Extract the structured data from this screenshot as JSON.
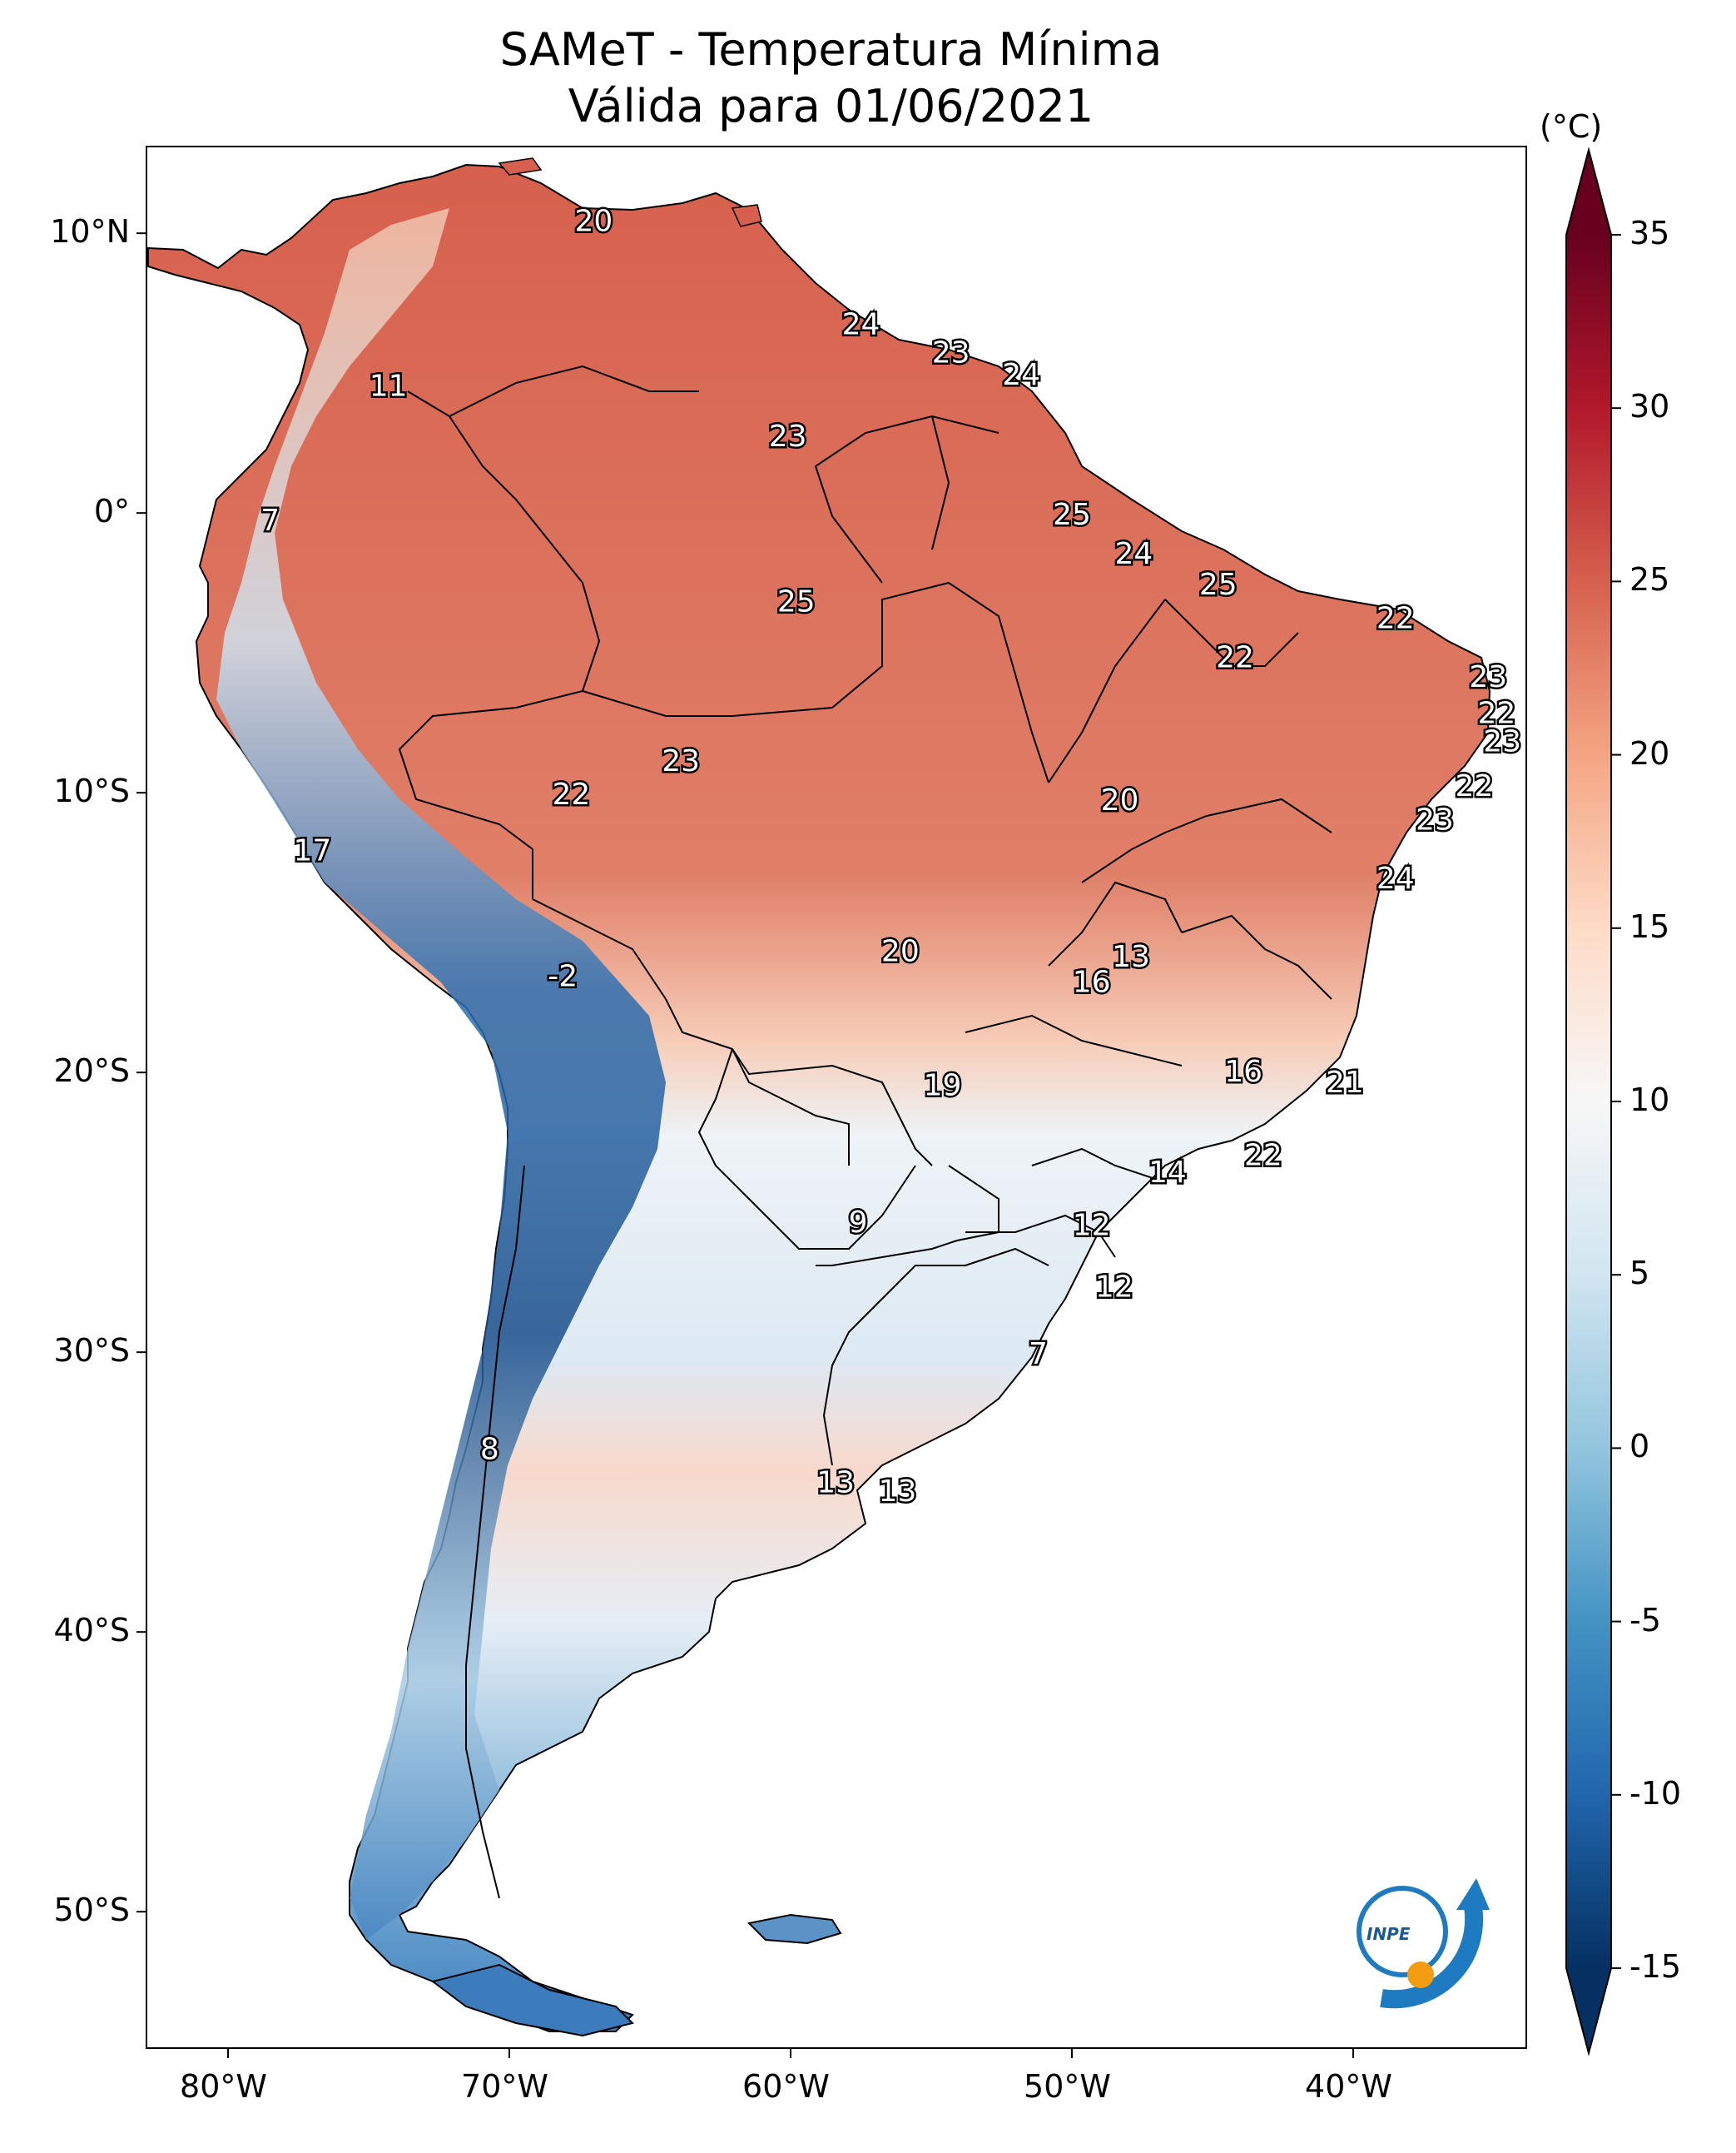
{
  "title": "SAMeT - Temperatura Mínima",
  "subtitle": "Válida para 01/06/2021",
  "colorbar": {
    "unit": "(°C)",
    "ticks": [
      "35",
      "30",
      "25",
      "20",
      "15",
      "10",
      "5",
      "0",
      "-5",
      "-10",
      "-15"
    ],
    "min": -15,
    "max": 35,
    "colors_cold_to_hot": [
      "#053061",
      "#2166ac",
      "#4393c3",
      "#92c5de",
      "#d1e5f0",
      "#f7f7f7",
      "#fddbc7",
      "#f4a582",
      "#d6604d",
      "#b2182b",
      "#67001f"
    ]
  },
  "axes": {
    "lat_ticks": [
      "10°N",
      "0°",
      "10°S",
      "20°S",
      "30°S",
      "40°S",
      "50°S"
    ],
    "lon_ticks": [
      "80°W",
      "70°W",
      "60°W",
      "50°W",
      "40°W"
    ]
  },
  "city_values": [
    {
      "label": "20",
      "lon": -67.0,
      "lat": 10.5
    },
    {
      "label": "11",
      "lon": -74.3,
      "lat": 4.6
    },
    {
      "label": "24",
      "lon": -57.5,
      "lat": 6.8
    },
    {
      "label": "23",
      "lon": -54.3,
      "lat": 5.8
    },
    {
      "label": "24",
      "lon": -51.8,
      "lat": 5.0
    },
    {
      "label": "23",
      "lon": -60.1,
      "lat": 2.8
    },
    {
      "label": "7",
      "lon": -78.5,
      "lat": -0.2
    },
    {
      "label": "25",
      "lon": -50.0,
      "lat": 0.0
    },
    {
      "label": "24",
      "lon": -47.8,
      "lat": -1.4
    },
    {
      "label": "25",
      "lon": -44.8,
      "lat": -2.5
    },
    {
      "label": "22",
      "lon": -38.5,
      "lat": -3.7
    },
    {
      "label": "25",
      "lon": -59.8,
      "lat": -3.1
    },
    {
      "label": "22",
      "lon": -44.2,
      "lat": -5.1
    },
    {
      "label": "23",
      "lon": -35.2,
      "lat": -5.8
    },
    {
      "label": "22",
      "lon": -34.9,
      "lat": -7.1
    },
    {
      "label": "23",
      "lon": -34.7,
      "lat": -8.1
    },
    {
      "label": "23",
      "lon": -63.9,
      "lat": -8.8
    },
    {
      "label": "22",
      "lon": -67.8,
      "lat": -10.0
    },
    {
      "label": "20",
      "lon": -48.3,
      "lat": -10.2
    },
    {
      "label": "22",
      "lon": -35.7,
      "lat": -9.7
    },
    {
      "label": "23",
      "lon": -37.1,
      "lat": -10.9
    },
    {
      "label": "17",
      "lon": -77.0,
      "lat": -12.0
    },
    {
      "label": "24",
      "lon": -38.5,
      "lat": -13.0
    },
    {
      "label": "13",
      "lon": -47.9,
      "lat": -15.8
    },
    {
      "label": "20",
      "lon": -56.1,
      "lat": -15.6
    },
    {
      "label": "-2",
      "lon": -68.1,
      "lat": -16.5
    },
    {
      "label": "16",
      "lon": -49.3,
      "lat": -16.7
    },
    {
      "label": "16",
      "lon": -43.9,
      "lat": -19.9
    },
    {
      "label": "21",
      "lon": -40.3,
      "lat": -20.3
    },
    {
      "label": "19",
      "lon": -54.6,
      "lat": -20.4
    },
    {
      "label": "22",
      "lon": -43.2,
      "lat": -22.9
    },
    {
      "label": "14",
      "lon": -46.6,
      "lat": -23.5
    },
    {
      "label": "9",
      "lon": -57.6,
      "lat": -25.3
    },
    {
      "label": "12",
      "lon": -49.3,
      "lat": -25.4
    },
    {
      "label": "12",
      "lon": -48.5,
      "lat": -27.6
    },
    {
      "label": "7",
      "lon": -51.2,
      "lat": -30.0
    },
    {
      "label": "8",
      "lon": -70.7,
      "lat": -33.4
    },
    {
      "label": "13",
      "lon": -58.4,
      "lat": -34.6
    },
    {
      "label": "13",
      "lon": -56.2,
      "lat": -34.9
    }
  ]
}
